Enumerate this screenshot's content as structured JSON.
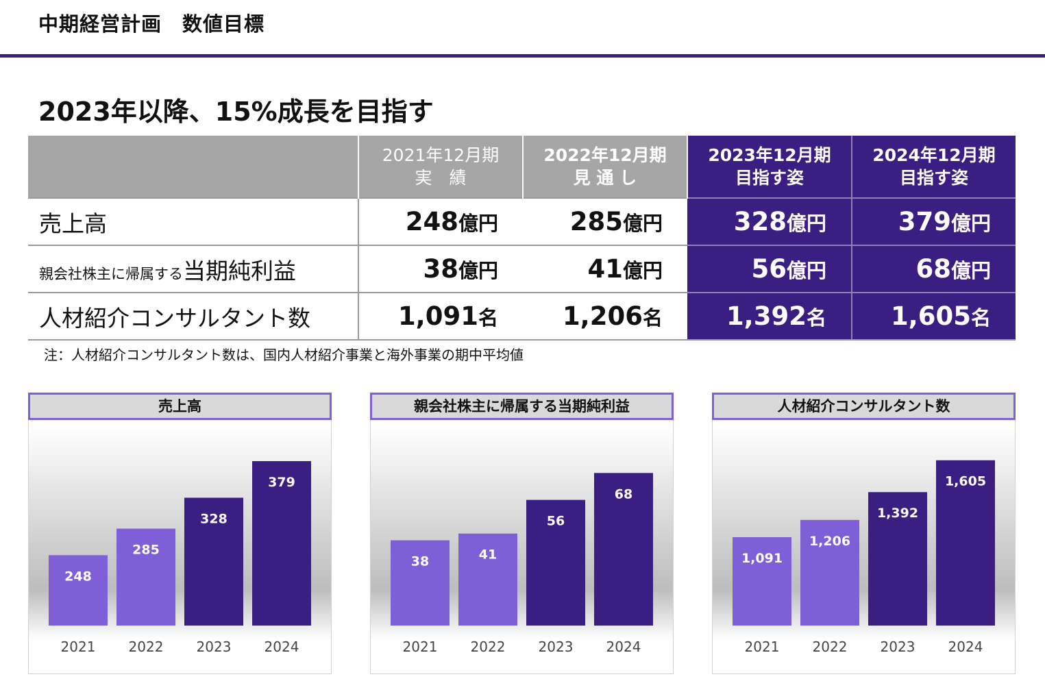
{
  "header": {
    "title": "中期経営計画　数値目標"
  },
  "headline": "2023年以降、15%成長を目指す",
  "table": {
    "columns": [
      {
        "year": "2021年12月期",
        "sub": "実　績"
      },
      {
        "year": "2022年12月期",
        "sub": "見 通 し"
      },
      {
        "year": "2023年12月期",
        "sub": "目指す姿"
      },
      {
        "year": "2024年12月期",
        "sub": "目指す姿"
      }
    ],
    "rows": [
      {
        "label_small": "",
        "label": "売上高",
        "unit": "億円",
        "values": [
          "248",
          "285",
          "328",
          "379"
        ]
      },
      {
        "label_small": "親会社株主に帰属する",
        "label": "当期純利益",
        "unit": "億円",
        "values": [
          "38",
          "41",
          "56",
          "68"
        ]
      },
      {
        "label_small": "",
        "label": "人材紹介コンサルタント数",
        "unit": "名",
        "values": [
          "1,091",
          "1,206",
          "1,392",
          "1,605"
        ]
      }
    ],
    "note": "注：人材紹介コンサルタント数は、国内人材紹介事業と海外事業の期中平均値"
  },
  "colors": {
    "dark_purple": "#3a1e82",
    "light_purple": "#7f5fd8",
    "header_gray": "#a6a6a6"
  },
  "chart_data": [
    {
      "type": "bar",
      "title": "売上高",
      "categories": [
        "2021",
        "2022",
        "2023",
        "2024"
      ],
      "values": [
        248,
        285,
        328,
        379
      ],
      "labels": [
        "248",
        "285",
        "328",
        "379"
      ],
      "ylim": [
        150,
        400
      ],
      "grid": false
    },
    {
      "type": "bar",
      "title": "親会社株主に帰属する当期純利益",
      "categories": [
        "2021",
        "2022",
        "2023",
        "2024"
      ],
      "values": [
        38,
        41,
        56,
        68
      ],
      "labels": [
        "38",
        "41",
        "56",
        "68"
      ],
      "ylim": [
        0,
        80
      ],
      "grid": false
    },
    {
      "type": "bar",
      "title": "人材紹介コンサルタント数",
      "categories": [
        "2021",
        "2022",
        "2023",
        "2024"
      ],
      "values": [
        1091,
        1206,
        1392,
        1605
      ],
      "labels": [
        "1,091",
        "1,206",
        "1,392",
        "1,605"
      ],
      "ylim": [
        500,
        1700
      ],
      "grid": false
    }
  ]
}
